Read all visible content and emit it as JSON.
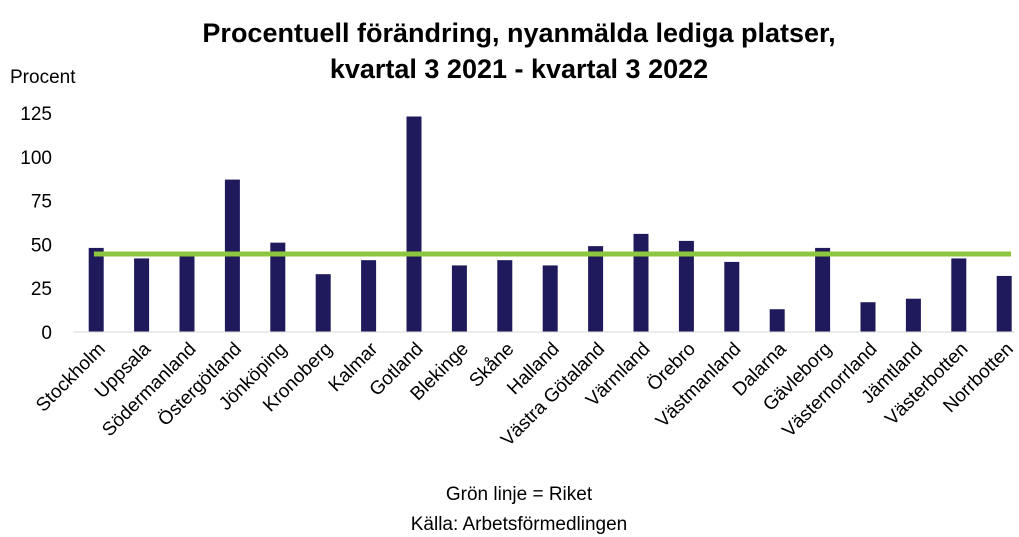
{
  "chart_data": {
    "type": "bar",
    "title": [
      "Procentuell förändring, nyanmälda lediga platser,",
      "kvartal 3 2021 - kvartal 3 2022"
    ],
    "y_label": "Procent",
    "categories": [
      "Stockholm",
      "Uppsala",
      "Södermanland",
      "Östergötland",
      "Jönköping",
      "Kronoberg",
      "Kalmar",
      "Gotland",
      "Blekinge",
      "Skåne",
      "Halland",
      "Västra Götaland",
      "Värmland",
      "Örebro",
      "Västmanland",
      "Dalarna",
      "Gävleborg",
      "Västernorrland",
      "Jämtland",
      "Västerbotten",
      "Norrbotten"
    ],
    "values": [
      48,
      42,
      44,
      87,
      51,
      33,
      41,
      123,
      38,
      41,
      38,
      49,
      56,
      52,
      40,
      13,
      48,
      17,
      19,
      42,
      32
    ],
    "color": "#1f1a5c",
    "reference_line": {
      "value": 44.5,
      "color": "#8dc63f"
    },
    "ylim": [
      0,
      125
    ],
    "yticks": [
      0,
      25,
      50,
      75,
      100,
      125
    ],
    "grid": false,
    "notes": [
      "Grön linje = Riket",
      "Källa: Arbetsförmedlingen"
    ]
  }
}
